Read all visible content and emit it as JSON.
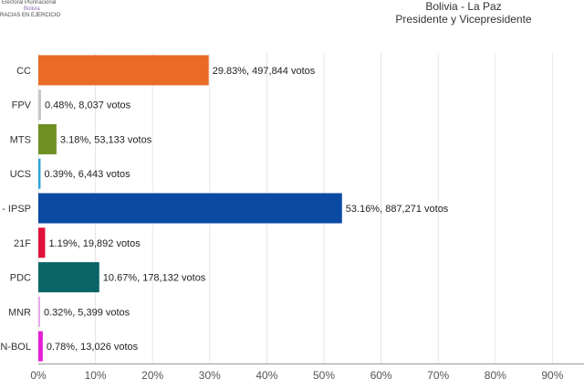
{
  "logo": {
    "line1": "Electoral Plurinacional",
    "line2": "Bolivia",
    "line3": "RACIAS EN EJERCICIO"
  },
  "header": {
    "title": "Bolivia - La Paz",
    "subtitle": "Presidente y Vicepresidente"
  },
  "chart_data": {
    "type": "bar",
    "orientation": "horizontal",
    "title": "Bolivia - La Paz",
    "subtitle": "Presidente y Vicepresidente",
    "categories": [
      "CC",
      "FPV",
      "MTS",
      "UCS",
      "- IPSP",
      "21F",
      "PDC",
      "MNR",
      "AN-BOL"
    ],
    "values": [
      29.83,
      0.48,
      3.18,
      0.39,
      53.16,
      1.19,
      10.67,
      0.32,
      0.78
    ],
    "labels": [
      "29.83%,  497,844 votos",
      "0.48%,  8,037 votos",
      "3.18%,  53,133 votos",
      "0.39%,  6,443 votos",
      "53.16%,  887,271 votos",
      "1.19%,  19,892 votos",
      "10.67%,  178,132 votos",
      "0.32%,  5,399 votos",
      "0.78%,  13,026 votos"
    ],
    "colors": [
      "#ea6a26",
      "#c8c8c8",
      "#6f8f23",
      "#2ea3dd",
      "#0a4aa3",
      "#e0113c",
      "#0b6567",
      "#e9a8ea",
      "#e51fd6"
    ],
    "xlim": [
      0,
      100
    ],
    "xticks": [
      "0%",
      "10%",
      "20%",
      "30%",
      "40%",
      "50%",
      "60%",
      "70%",
      "80%",
      "90%"
    ],
    "grid": true
  }
}
